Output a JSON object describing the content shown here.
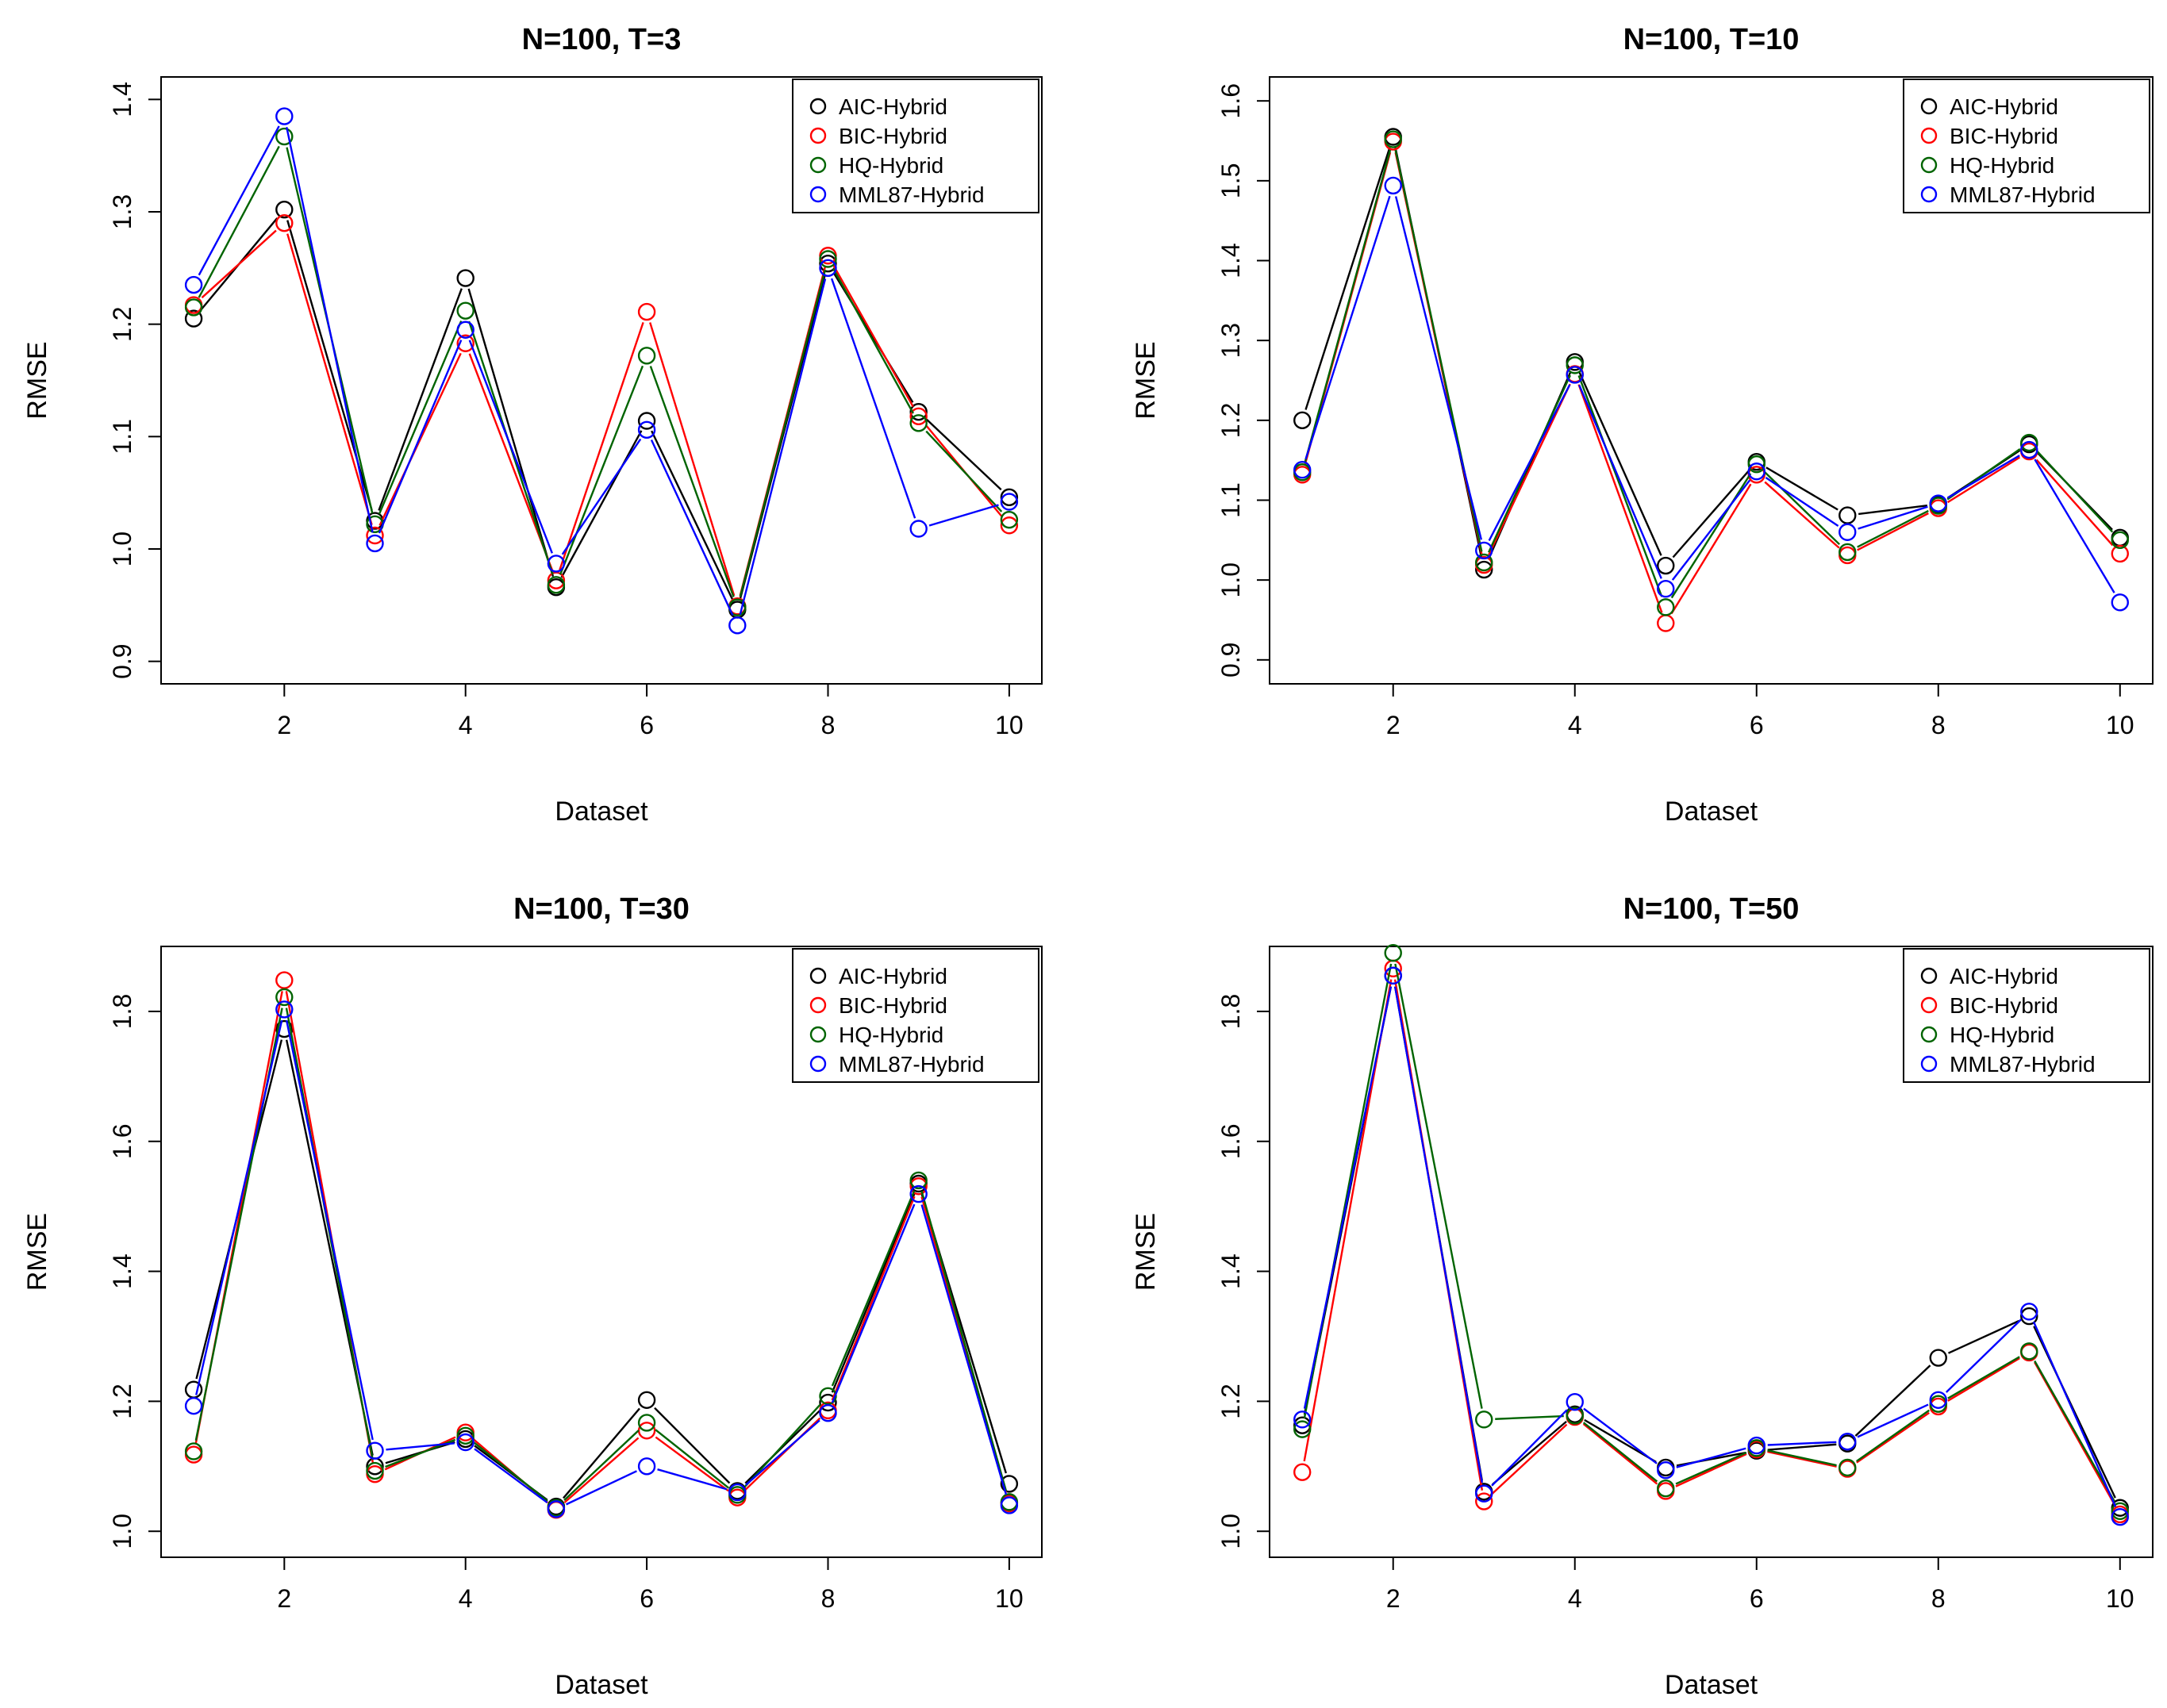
{
  "chart_data": [
    {
      "type": "line",
      "title": "N=100, T=3",
      "xlabel": "Dataset",
      "ylabel": "RMSE",
      "x": [
        1,
        2,
        3,
        4,
        5,
        6,
        7,
        8,
        9,
        10
      ],
      "xticks": [
        "2",
        "4",
        "6",
        "8",
        "10"
      ],
      "yticks": [
        "0.9",
        "1.0",
        "1.1",
        "1.2",
        "1.3",
        "1.4"
      ],
      "ylim": [
        0.88,
        1.42
      ],
      "legend_position": "top-right",
      "series": [
        {
          "name": "AIC-Hybrid",
          "color": "#000000",
          "values": [
            1.205,
            1.302,
            1.025,
            1.241,
            0.966,
            1.114,
            0.946,
            1.254,
            1.122,
            1.046
          ]
        },
        {
          "name": "BIC-Hybrid",
          "color": "#ff0000",
          "values": [
            1.217,
            1.29,
            1.012,
            1.183,
            0.972,
            1.211,
            0.949,
            1.261,
            1.118,
            1.021
          ]
        },
        {
          "name": "HQ-Hybrid",
          "color": "#006400",
          "values": [
            1.215,
            1.367,
            1.022,
            1.212,
            0.968,
            1.172,
            0.948,
            1.258,
            1.112,
            1.026
          ]
        },
        {
          "name": "MML87-Hybrid",
          "color": "#0000ff",
          "values": [
            1.235,
            1.385,
            1.005,
            1.195,
            0.987,
            1.106,
            0.932,
            1.25,
            1.018,
            1.042
          ]
        }
      ]
    },
    {
      "type": "line",
      "title": "N=100, T=10",
      "xlabel": "Dataset",
      "ylabel": "RMSE",
      "x": [
        1,
        2,
        3,
        4,
        5,
        6,
        7,
        8,
        9,
        10
      ],
      "xticks": [
        "2",
        "4",
        "6",
        "8",
        "10"
      ],
      "yticks": [
        "0.9",
        "1.0",
        "1.1",
        "1.2",
        "1.3",
        "1.4",
        "1.5",
        "1.6"
      ],
      "ylim": [
        0.87,
        1.63
      ],
      "legend_position": "top-right",
      "series": [
        {
          "name": "AIC-Hybrid",
          "color": "#000000",
          "values": [
            1.2,
            1.555,
            1.013,
            1.273,
            1.018,
            1.148,
            1.081,
            1.095,
            1.17,
            1.053
          ]
        },
        {
          "name": "BIC-Hybrid",
          "color": "#ff0000",
          "values": [
            1.132,
            1.549,
            1.019,
            1.258,
            0.946,
            1.132,
            1.031,
            1.09,
            1.161,
            1.033
          ]
        },
        {
          "name": "HQ-Hybrid",
          "color": "#006400",
          "values": [
            1.135,
            1.552,
            1.022,
            1.269,
            0.966,
            1.145,
            1.035,
            1.093,
            1.172,
            1.05
          ]
        },
        {
          "name": "MML87-Hybrid",
          "color": "#0000ff",
          "values": [
            1.138,
            1.494,
            1.037,
            1.257,
            0.989,
            1.136,
            1.06,
            1.096,
            1.163,
            0.972
          ]
        }
      ]
    },
    {
      "type": "line",
      "title": "N=100, T=30",
      "xlabel": "Dataset",
      "ylabel": "RMSE",
      "x": [
        1,
        2,
        3,
        4,
        5,
        6,
        7,
        8,
        9,
        10
      ],
      "xticks": [
        "2",
        "4",
        "6",
        "8",
        "10"
      ],
      "yticks": [
        "1.0",
        "1.2",
        "1.4",
        "1.6",
        "1.8"
      ],
      "ylim": [
        0.96,
        1.9
      ],
      "legend_position": "top-right",
      "series": [
        {
          "name": "AIC-Hybrid",
          "color": "#000000",
          "values": [
            1.218,
            1.773,
            1.1,
            1.142,
            1.038,
            1.202,
            1.062,
            1.198,
            1.535,
            1.073
          ]
        },
        {
          "name": "BIC-Hybrid",
          "color": "#ff0000",
          "values": [
            1.118,
            1.848,
            1.088,
            1.152,
            1.033,
            1.155,
            1.052,
            1.186,
            1.531,
            1.043
          ]
        },
        {
          "name": "HQ-Hybrid",
          "color": "#006400",
          "values": [
            1.123,
            1.822,
            1.093,
            1.147,
            1.036,
            1.167,
            1.056,
            1.208,
            1.54,
            1.045
          ]
        },
        {
          "name": "MML87-Hybrid",
          "color": "#0000ff",
          "values": [
            1.193,
            1.803,
            1.124,
            1.137,
            1.034,
            1.1,
            1.06,
            1.182,
            1.519,
            1.04
          ]
        }
      ]
    },
    {
      "type": "line",
      "title": "N=100, T=50",
      "xlabel": "Dataset",
      "ylabel": "RMSE",
      "x": [
        1,
        2,
        3,
        4,
        5,
        6,
        7,
        8,
        9,
        10
      ],
      "xticks": [
        "2",
        "4",
        "6",
        "8",
        "10"
      ],
      "yticks": [
        "1.0",
        "1.2",
        "1.4",
        "1.6",
        "1.8"
      ],
      "ylim": [
        0.96,
        1.9
      ],
      "legend_position": "top-right",
      "series": [
        {
          "name": "AIC-Hybrid",
          "color": "#000000",
          "values": [
            1.163,
            1.855,
            1.061,
            1.18,
            1.098,
            1.124,
            1.135,
            1.267,
            1.331,
            1.036
          ]
        },
        {
          "name": "BIC-Hybrid",
          "color": "#ff0000",
          "values": [
            1.091,
            1.866,
            1.046,
            1.176,
            1.062,
            1.126,
            1.096,
            1.192,
            1.275,
            1.026
          ]
        },
        {
          "name": "HQ-Hybrid",
          "color": "#006400",
          "values": [
            1.157,
            1.89,
            1.172,
            1.178,
            1.066,
            1.128,
            1.098,
            1.196,
            1.277,
            1.031
          ]
        },
        {
          "name": "MML87-Hybrid",
          "color": "#0000ff",
          "values": [
            1.172,
            1.855,
            1.058,
            1.199,
            1.094,
            1.132,
            1.138,
            1.202,
            1.338,
            1.022
          ]
        }
      ]
    }
  ]
}
